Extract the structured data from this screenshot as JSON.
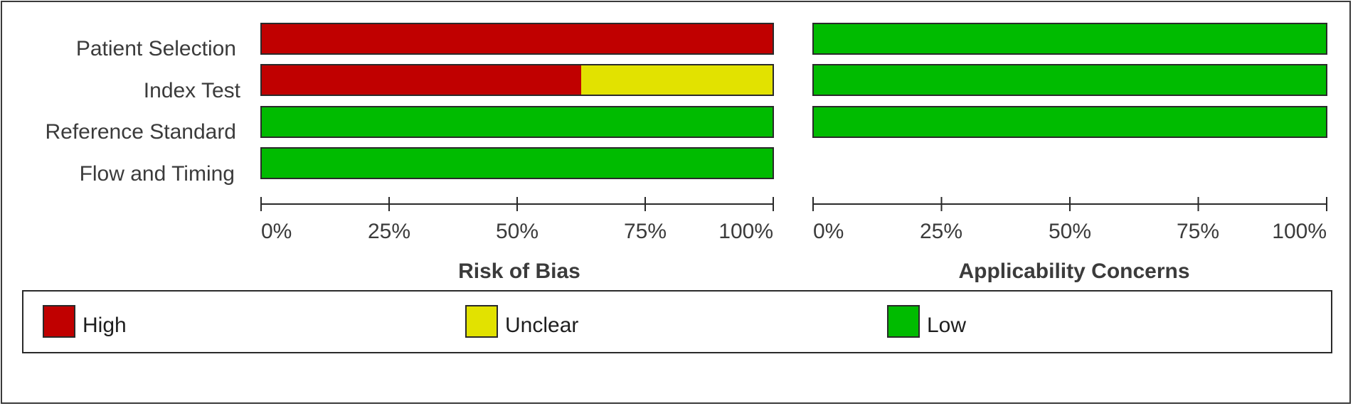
{
  "chart_data": {
    "type": "bar",
    "orientation": "horizontal",
    "stacked": true,
    "categories": [
      "Patient Selection",
      "Index Test",
      "Reference Standard",
      "Flow and Timing"
    ],
    "tick_labels": [
      "0%",
      "25%",
      "50%",
      "75%",
      "100%"
    ],
    "xlim": [
      0,
      100
    ],
    "panels": [
      {
        "id": "risk",
        "title": "Risk of Bias",
        "rows": [
          {
            "category": "Patient Selection",
            "High": 100,
            "Unclear": 0,
            "Low": 0
          },
          {
            "category": "Index Test",
            "High": 62.5,
            "Unclear": 37.5,
            "Low": 0
          },
          {
            "category": "Reference Standard",
            "High": 0,
            "Unclear": 0,
            "Low": 100
          },
          {
            "category": "Flow and Timing",
            "High": 0,
            "Unclear": 0,
            "Low": 100
          }
        ]
      },
      {
        "id": "app",
        "title": "Applicability Concerns",
        "rows": [
          {
            "category": "Patient Selection",
            "High": 0,
            "Unclear": 0,
            "Low": 100
          },
          {
            "category": "Index Test",
            "High": 0,
            "Unclear": 0,
            "Low": 100
          },
          {
            "category": "Reference Standard",
            "High": 0,
            "Unclear": 0,
            "Low": 100
          }
        ]
      }
    ],
    "legend": {
      "placement": "bottom",
      "entries": [
        {
          "name": "High",
          "color": "#c00000"
        },
        {
          "name": "Unclear",
          "color": "#e2e200"
        },
        {
          "name": "Low",
          "color": "#00bb00"
        }
      ]
    }
  }
}
